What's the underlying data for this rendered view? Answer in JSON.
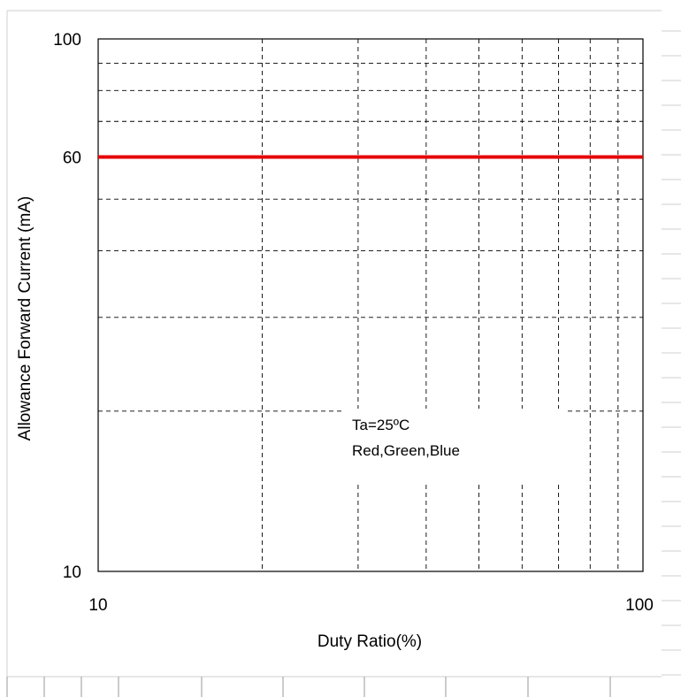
{
  "chart_data": {
    "type": "line",
    "xlabel": "Duty Ratio(%)",
    "ylabel": "Allowance Forward Current (mA)",
    "x_scale": "log",
    "y_scale": "log",
    "xlim": [
      10,
      100
    ],
    "ylim": [
      10,
      100
    ],
    "x_ticks": [
      {
        "value": 10,
        "label": "10"
      },
      {
        "value": 100,
        "label": "100"
      }
    ],
    "y_ticks": [
      {
        "value": 100,
        "label": "100"
      },
      {
        "value": 60,
        "label": "60"
      },
      {
        "value": 10,
        "label": "10"
      }
    ],
    "x_grid": [
      20,
      30,
      40,
      50,
      60,
      70,
      80,
      90
    ],
    "y_grid": [
      20,
      30,
      40,
      50,
      70,
      80,
      90
    ],
    "grid": true,
    "grid_style": "dashed",
    "series": [
      {
        "color": "#e60000",
        "x": [
          10,
          100
        ],
        "y": [
          60,
          60
        ]
      }
    ],
    "annotations": [
      "Ta=25ºC",
      "Red,Green,Blue"
    ]
  }
}
